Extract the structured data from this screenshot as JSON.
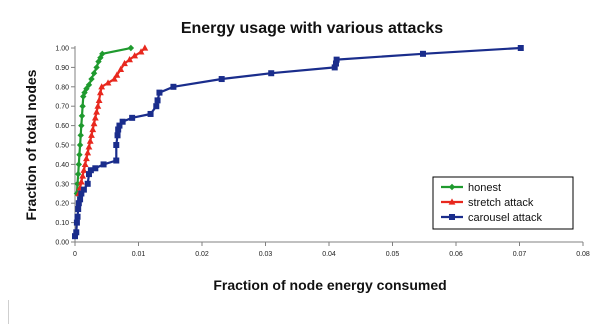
{
  "chart_data": {
    "type": "line",
    "title": "Energy usage with various attacks",
    "xlabel": "Fraction of node energy consumed",
    "ylabel": "Fraction of total nodes",
    "xlim": [
      0,
      0.08
    ],
    "ylim": [
      0,
      1.0
    ],
    "x_ticks": [
      "0",
      "0.01",
      "0.02",
      "0.03",
      "0.04",
      "0.05",
      "0.06",
      "0.07",
      "0.08"
    ],
    "y_ticks": [
      "0.00",
      "0.10",
      "0.20",
      "0.30",
      "0.40",
      "0.50",
      "0.60",
      "0.70",
      "0.80",
      "0.90",
      "1.00"
    ],
    "grid": false,
    "legend_position": "bottom-right",
    "series": [
      {
        "name": "honest",
        "color": "#1f9a2e",
        "marker": "diamond",
        "x": [
          0.0003,
          0.0004,
          0.0005,
          0.0006,
          0.0007,
          0.0008,
          0.0009,
          0.001,
          0.0011,
          0.0012,
          0.0013,
          0.0015,
          0.0018,
          0.0022,
          0.0026,
          0.003,
          0.0034,
          0.0037,
          0.004,
          0.0043,
          0.0088
        ],
        "y": [
          0.25,
          0.3,
          0.35,
          0.4,
          0.45,
          0.5,
          0.55,
          0.6,
          0.65,
          0.7,
          0.75,
          0.77,
          0.79,
          0.81,
          0.84,
          0.87,
          0.9,
          0.93,
          0.95,
          0.97,
          1.0
        ]
      },
      {
        "name": "stretch attack",
        "color": "#e8281e",
        "marker": "triangle",
        "x": [
          0.0006,
          0.0008,
          0.001,
          0.0012,
          0.0014,
          0.0016,
          0.0018,
          0.002,
          0.0022,
          0.0024,
          0.0026,
          0.0028,
          0.003,
          0.0032,
          0.0034,
          0.0036,
          0.0038,
          0.004,
          0.0042,
          0.0052,
          0.0062,
          0.0066,
          0.0072,
          0.0078,
          0.0086,
          0.0094,
          0.0104,
          0.011
        ],
        "y": [
          0.25,
          0.28,
          0.31,
          0.34,
          0.37,
          0.4,
          0.43,
          0.46,
          0.49,
          0.52,
          0.55,
          0.58,
          0.61,
          0.64,
          0.67,
          0.7,
          0.73,
          0.77,
          0.8,
          0.82,
          0.84,
          0.86,
          0.89,
          0.92,
          0.94,
          0.96,
          0.98,
          1.0
        ]
      },
      {
        "name": "carousel attack",
        "color": "#1a2d8c",
        "marker": "square",
        "x": [
          0.0,
          0.0002,
          0.0003,
          0.0004,
          0.0005,
          0.0006,
          0.0008,
          0.001,
          0.0014,
          0.002,
          0.0022,
          0.0025,
          0.0032,
          0.0045,
          0.0065,
          0.0065,
          0.0067,
          0.0068,
          0.007,
          0.0075,
          0.009,
          0.0119,
          0.0128,
          0.013,
          0.0133,
          0.0155,
          0.0231,
          0.0309,
          0.0409,
          0.0411,
          0.0412,
          0.0548,
          0.0702
        ],
        "y": [
          0.03,
          0.05,
          0.1,
          0.13,
          0.17,
          0.2,
          0.22,
          0.25,
          0.27,
          0.3,
          0.35,
          0.37,
          0.38,
          0.4,
          0.42,
          0.5,
          0.55,
          0.58,
          0.6,
          0.62,
          0.64,
          0.66,
          0.7,
          0.73,
          0.77,
          0.8,
          0.84,
          0.87,
          0.9,
          0.92,
          0.94,
          0.97,
          1.0
        ]
      }
    ]
  }
}
